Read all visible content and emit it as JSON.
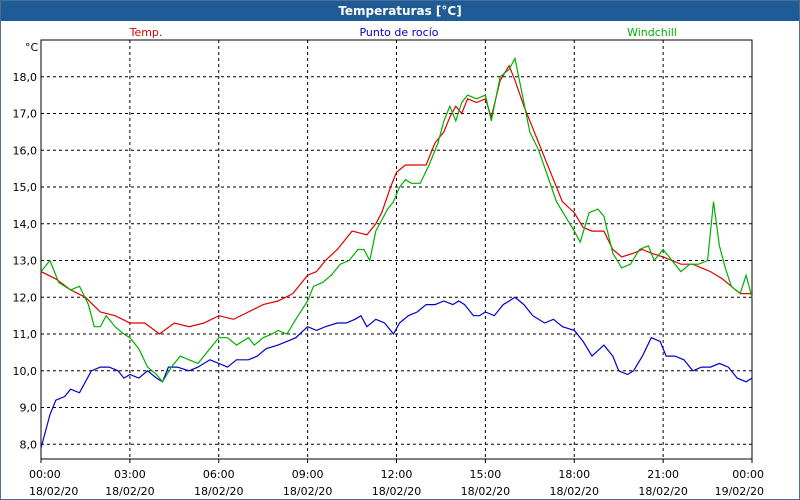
{
  "window": {
    "title": "Temperaturas [°C]"
  },
  "chart_data": {
    "type": "line",
    "title": "Temperaturas [°C]",
    "ylabel": "°C",
    "xlabel": "",
    "ylim": [
      7.6,
      19.0
    ],
    "xlim": [
      0,
      24
    ],
    "grid": true,
    "yticks": [
      "8,0",
      "9,0",
      "10,0",
      "11,0",
      "12,0",
      "13,0",
      "14,0",
      "15,0",
      "16,0",
      "17,0",
      "18,0"
    ],
    "ytick_values": [
      8,
      9,
      10,
      11,
      12,
      13,
      14,
      15,
      16,
      17,
      18
    ],
    "xticks": [
      {
        "time": "00:00",
        "date": "18/02/20"
      },
      {
        "time": "03:00",
        "date": "18/02/20"
      },
      {
        "time": "06:00",
        "date": "18/02/20"
      },
      {
        "time": "09:00",
        "date": "18/02/20"
      },
      {
        "time": "12:00",
        "date": "18/02/20"
      },
      {
        "time": "15:00",
        "date": "18/02/20"
      },
      {
        "time": "18:00",
        "date": "18/02/20"
      },
      {
        "time": "21:00",
        "date": "18/02/20"
      },
      {
        "time": "00:00",
        "date": "19/02/20"
      }
    ],
    "xtick_hours": [
      0,
      3,
      6,
      9,
      12,
      15,
      18,
      21,
      24
    ],
    "legend_position": "top",
    "series": [
      {
        "name": "Temp.",
        "color": "#e00000",
        "points": [
          [
            0,
            12.7
          ],
          [
            0.5,
            12.5
          ],
          [
            1,
            12.2
          ],
          [
            1.5,
            12.0
          ],
          [
            2,
            11.6
          ],
          [
            2.5,
            11.5
          ],
          [
            3,
            11.3
          ],
          [
            3.5,
            11.3
          ],
          [
            4,
            11.0
          ],
          [
            4.5,
            11.3
          ],
          [
            5,
            11.2
          ],
          [
            5.5,
            11.3
          ],
          [
            6,
            11.5
          ],
          [
            6.5,
            11.4
          ],
          [
            7,
            11.6
          ],
          [
            7.5,
            11.8
          ],
          [
            8,
            11.9
          ],
          [
            8.5,
            12.1
          ],
          [
            9,
            12.6
          ],
          [
            9.3,
            12.7
          ],
          [
            9.6,
            13.0
          ],
          [
            10,
            13.3
          ],
          [
            10.5,
            13.8
          ],
          [
            11,
            13.7
          ],
          [
            11.3,
            14.0
          ],
          [
            11.5,
            14.3
          ],
          [
            11.8,
            15.0
          ],
          [
            12,
            15.4
          ],
          [
            12.3,
            15.6
          ],
          [
            12.6,
            15.6
          ],
          [
            13,
            15.6
          ],
          [
            13.3,
            16.2
          ],
          [
            13.6,
            16.5
          ],
          [
            13.8,
            16.9
          ],
          [
            14,
            17.2
          ],
          [
            14.2,
            17.0
          ],
          [
            14.4,
            17.4
          ],
          [
            14.7,
            17.3
          ],
          [
            15,
            17.4
          ],
          [
            15.2,
            16.9
          ],
          [
            15.5,
            17.9
          ],
          [
            15.8,
            18.3
          ],
          [
            16,
            17.9
          ],
          [
            16.3,
            17.2
          ],
          [
            16.6,
            16.6
          ],
          [
            17,
            15.8
          ],
          [
            17.3,
            15.2
          ],
          [
            17.6,
            14.6
          ],
          [
            18,
            14.3
          ],
          [
            18.3,
            13.9
          ],
          [
            18.6,
            13.8
          ],
          [
            19,
            13.8
          ],
          [
            19.3,
            13.3
          ],
          [
            19.6,
            13.1
          ],
          [
            20,
            13.2
          ],
          [
            20.3,
            13.3
          ],
          [
            20.6,
            13.2
          ],
          [
            21,
            13.1
          ],
          [
            21.3,
            13.0
          ],
          [
            21.6,
            12.9
          ],
          [
            22,
            12.9
          ],
          [
            22.3,
            12.8
          ],
          [
            22.6,
            12.7
          ],
          [
            23,
            12.5
          ],
          [
            23.3,
            12.3
          ],
          [
            23.6,
            12.1
          ],
          [
            24,
            12.1
          ]
        ]
      },
      {
        "name": "Punto de rocío",
        "color": "#0000c8",
        "points": [
          [
            0,
            7.9
          ],
          [
            0.1,
            8.2
          ],
          [
            0.3,
            8.8
          ],
          [
            0.5,
            9.2
          ],
          [
            0.8,
            9.3
          ],
          [
            1,
            9.5
          ],
          [
            1.3,
            9.4
          ],
          [
            1.5,
            9.7
          ],
          [
            1.7,
            10.0
          ],
          [
            2,
            10.1
          ],
          [
            2.3,
            10.1
          ],
          [
            2.6,
            10.0
          ],
          [
            2.8,
            9.8
          ],
          [
            3,
            9.9
          ],
          [
            3.3,
            9.8
          ],
          [
            3.6,
            10.0
          ],
          [
            3.9,
            9.8
          ],
          [
            4.1,
            9.7
          ],
          [
            4.3,
            10.1
          ],
          [
            4.6,
            10.1
          ],
          [
            5,
            10.0
          ],
          [
            5.3,
            10.1
          ],
          [
            5.7,
            10.3
          ],
          [
            6,
            10.2
          ],
          [
            6.3,
            10.1
          ],
          [
            6.6,
            10.3
          ],
          [
            7,
            10.3
          ],
          [
            7.3,
            10.4
          ],
          [
            7.6,
            10.6
          ],
          [
            8,
            10.7
          ],
          [
            8.3,
            10.8
          ],
          [
            8.6,
            10.9
          ],
          [
            9,
            11.2
          ],
          [
            9.3,
            11.1
          ],
          [
            9.6,
            11.2
          ],
          [
            10,
            11.3
          ],
          [
            10.3,
            11.3
          ],
          [
            10.6,
            11.4
          ],
          [
            10.8,
            11.5
          ],
          [
            11,
            11.2
          ],
          [
            11.3,
            11.4
          ],
          [
            11.6,
            11.3
          ],
          [
            11.9,
            11.0
          ],
          [
            12.1,
            11.3
          ],
          [
            12.4,
            11.5
          ],
          [
            12.7,
            11.6
          ],
          [
            13,
            11.8
          ],
          [
            13.3,
            11.8
          ],
          [
            13.6,
            11.9
          ],
          [
            13.9,
            11.8
          ],
          [
            14.1,
            11.9
          ],
          [
            14.3,
            11.8
          ],
          [
            14.6,
            11.5
          ],
          [
            14.8,
            11.5
          ],
          [
            15,
            11.6
          ],
          [
            15.3,
            11.5
          ],
          [
            15.6,
            11.8
          ],
          [
            15.8,
            11.9
          ],
          [
            16,
            12.0
          ],
          [
            16.3,
            11.8
          ],
          [
            16.6,
            11.5
          ],
          [
            17,
            11.3
          ],
          [
            17.3,
            11.4
          ],
          [
            17.6,
            11.2
          ],
          [
            18,
            11.1
          ],
          [
            18.3,
            10.8
          ],
          [
            18.6,
            10.4
          ],
          [
            19,
            10.7
          ],
          [
            19.3,
            10.4
          ],
          [
            19.5,
            10.0
          ],
          [
            19.8,
            9.9
          ],
          [
            20,
            10.0
          ],
          [
            20.3,
            10.4
          ],
          [
            20.6,
            10.9
          ],
          [
            20.9,
            10.8
          ],
          [
            21.1,
            10.4
          ],
          [
            21.4,
            10.4
          ],
          [
            21.7,
            10.3
          ],
          [
            22,
            10.0
          ],
          [
            22.3,
            10.1
          ],
          [
            22.6,
            10.1
          ],
          [
            22.9,
            10.2
          ],
          [
            23.2,
            10.1
          ],
          [
            23.5,
            9.8
          ],
          [
            23.8,
            9.7
          ],
          [
            24,
            9.8
          ]
        ]
      },
      {
        "name": "Windchill",
        "color": "#00b000",
        "points": [
          [
            0,
            12.7
          ],
          [
            0.3,
            13.0
          ],
          [
            0.6,
            12.4
          ],
          [
            1,
            12.2
          ],
          [
            1.3,
            12.3
          ],
          [
            1.6,
            11.8
          ],
          [
            1.8,
            11.2
          ],
          [
            2,
            11.2
          ],
          [
            2.2,
            11.5
          ],
          [
            2.5,
            11.2
          ],
          [
            2.8,
            11.0
          ],
          [
            3,
            10.9
          ],
          [
            3.3,
            10.6
          ],
          [
            3.6,
            10.1
          ],
          [
            3.9,
            9.9
          ],
          [
            4.1,
            9.7
          ],
          [
            4.4,
            10.1
          ],
          [
            4.7,
            10.4
          ],
          [
            5,
            10.3
          ],
          [
            5.3,
            10.2
          ],
          [
            5.6,
            10.5
          ],
          [
            6,
            10.9
          ],
          [
            6.3,
            10.9
          ],
          [
            6.6,
            10.7
          ],
          [
            7,
            10.9
          ],
          [
            7.2,
            10.7
          ],
          [
            7.5,
            10.9
          ],
          [
            7.8,
            11.0
          ],
          [
            8,
            11.1
          ],
          [
            8.3,
            11.0
          ],
          [
            8.6,
            11.4
          ],
          [
            9,
            11.9
          ],
          [
            9.2,
            12.3
          ],
          [
            9.5,
            12.4
          ],
          [
            9.8,
            12.6
          ],
          [
            10.1,
            12.9
          ],
          [
            10.4,
            13.0
          ],
          [
            10.7,
            13.3
          ],
          [
            10.9,
            13.3
          ],
          [
            11.1,
            13.0
          ],
          [
            11.3,
            13.8
          ],
          [
            11.5,
            14.1
          ],
          [
            11.7,
            14.4
          ],
          [
            11.9,
            14.6
          ],
          [
            12.1,
            15.0
          ],
          [
            12.3,
            15.2
          ],
          [
            12.5,
            15.1
          ],
          [
            12.8,
            15.1
          ],
          [
            13.1,
            15.6
          ],
          [
            13.4,
            16.2
          ],
          [
            13.6,
            16.8
          ],
          [
            13.8,
            17.2
          ],
          [
            14,
            16.8
          ],
          [
            14.2,
            17.3
          ],
          [
            14.4,
            17.5
          ],
          [
            14.7,
            17.4
          ],
          [
            15,
            17.5
          ],
          [
            15.2,
            16.8
          ],
          [
            15.5,
            18.0
          ],
          [
            15.8,
            18.2
          ],
          [
            16,
            18.5
          ],
          [
            16.2,
            17.7
          ],
          [
            16.5,
            16.5
          ],
          [
            16.8,
            16.0
          ],
          [
            17.1,
            15.3
          ],
          [
            17.4,
            14.6
          ],
          [
            17.7,
            14.2
          ],
          [
            18,
            13.8
          ],
          [
            18.2,
            13.5
          ],
          [
            18.5,
            14.3
          ],
          [
            18.8,
            14.4
          ],
          [
            19,
            14.2
          ],
          [
            19.3,
            13.2
          ],
          [
            19.6,
            12.8
          ],
          [
            19.9,
            12.9
          ],
          [
            20.2,
            13.3
          ],
          [
            20.5,
            13.4
          ],
          [
            20.7,
            13.0
          ],
          [
            21,
            13.3
          ],
          [
            21.3,
            13.0
          ],
          [
            21.6,
            12.7
          ],
          [
            21.9,
            12.9
          ],
          [
            22.2,
            12.9
          ],
          [
            22.5,
            13.0
          ],
          [
            22.7,
            14.6
          ],
          [
            22.9,
            13.4
          ],
          [
            23.1,
            12.8
          ],
          [
            23.3,
            12.3
          ],
          [
            23.6,
            12.1
          ],
          [
            23.8,
            12.6
          ],
          [
            24,
            12.0
          ]
        ]
      }
    ]
  }
}
